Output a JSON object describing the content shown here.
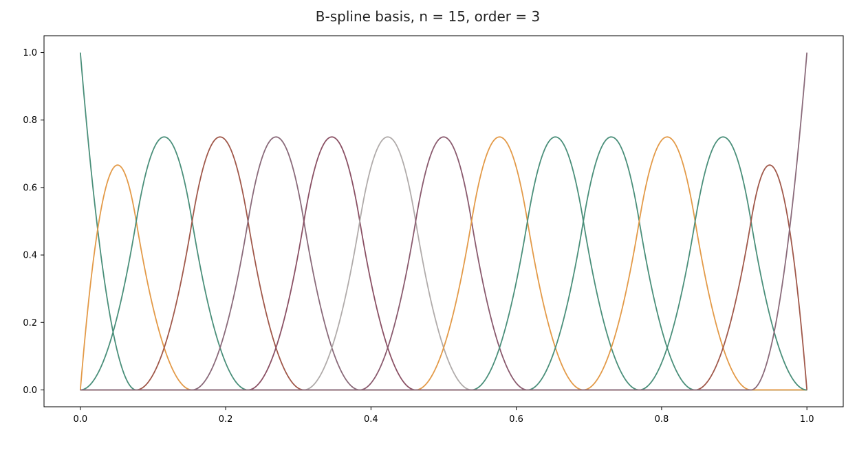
{
  "chart_data": {
    "type": "line",
    "title": "B-spline basis, n = 15, order = 3",
    "xlabel": "",
    "ylabel": "",
    "xlim": [
      -0.05,
      1.05
    ],
    "ylim": [
      -0.05,
      1.05
    ],
    "x_ticks": [
      "0.0",
      "0.2",
      "0.4",
      "0.6",
      "0.8",
      "1.0"
    ],
    "y_ticks": [
      "0.0",
      "0.2",
      "0.4",
      "0.6",
      "0.8",
      "1.0"
    ],
    "grid": false,
    "legend": "none",
    "basis": {
      "n": 15,
      "order": 3,
      "knot_range": [
        0,
        1
      ]
    },
    "series": [
      {
        "index": 0,
        "peak": [
          0.0,
          1.0
        ],
        "color": "#4a8f7a"
      },
      {
        "index": 1,
        "peak": [
          0.051,
          0.667
        ],
        "color": "#e39a48"
      },
      {
        "index": 2,
        "peak": [
          0.115,
          0.75
        ],
        "color": "#4a8f7a"
      },
      {
        "index": 3,
        "peak": [
          0.192,
          0.75
        ],
        "color": "#a0584a"
      },
      {
        "index": 4,
        "peak": [
          0.269,
          0.75
        ],
        "color": "#8a6a7a"
      },
      {
        "index": 5,
        "peak": [
          0.346,
          0.75
        ],
        "color": "#8a5064"
      },
      {
        "index": 6,
        "peak": [
          0.423,
          0.75
        ],
        "color": "#b0abaa"
      },
      {
        "index": 7,
        "peak": [
          0.5,
          0.75
        ],
        "color": "#8a5a6e"
      },
      {
        "index": 8,
        "peak": [
          0.577,
          0.75
        ],
        "color": "#e39a48"
      },
      {
        "index": 9,
        "peak": [
          0.654,
          0.75
        ],
        "color": "#4a8f7a"
      },
      {
        "index": 10,
        "peak": [
          0.731,
          0.75
        ],
        "color": "#4a8f7a"
      },
      {
        "index": 11,
        "peak": [
          0.808,
          0.75
        ],
        "color": "#e39a48"
      },
      {
        "index": 12,
        "peak": [
          0.885,
          0.75
        ],
        "color": "#4a8f7a"
      },
      {
        "index": 13,
        "peak": [
          0.949,
          0.667
        ],
        "color": "#a0584a"
      },
      {
        "index": 14,
        "peak": [
          1.0,
          1.0
        ],
        "color": "#8a6a7a"
      }
    ]
  }
}
